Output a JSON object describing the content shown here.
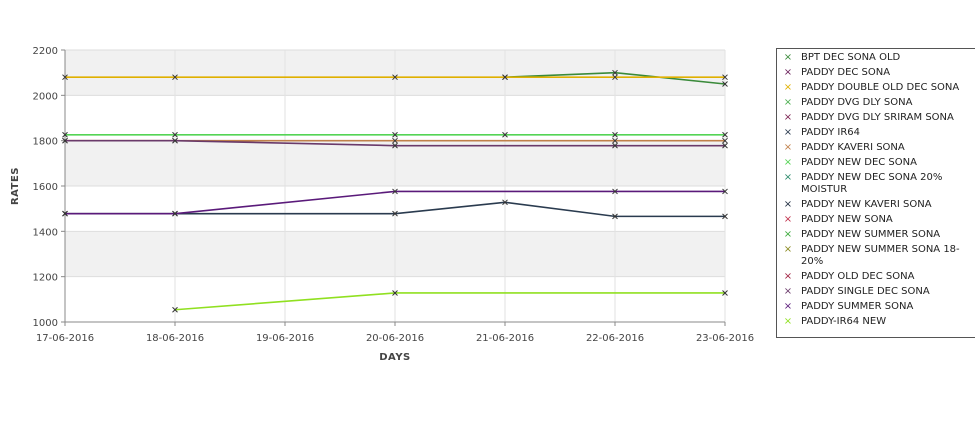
{
  "chart_data": {
    "type": "line",
    "x": [
      "17-06-2016",
      "18-06-2016",
      "19-06-2016",
      "20-06-2016",
      "21-06-2016",
      "22-06-2016",
      "23-06-2016"
    ],
    "xlabel": "DAYS",
    "ylabel": "RATES",
    "ylim": [
      1000,
      2200
    ],
    "yticks": [
      "1000",
      "1200",
      "1400",
      "1600",
      "1800",
      "2000",
      "2200"
    ],
    "grid": true,
    "legend_position": "right",
    "series": [
      {
        "name": "BPT DEC SONA OLD",
        "color": "#3a8a3a",
        "values": [
          null,
          null,
          null,
          null,
          2080,
          2100,
          2050
        ]
      },
      {
        "name": "PADDY DEC SONA",
        "color": "#6a1f5a",
        "values": [
          null,
          null,
          null,
          null,
          null,
          null,
          null
        ]
      },
      {
        "name": "PADDY DOUBLE OLD DEC SONA",
        "color": "#e0b000",
        "values": [
          2080,
          2080,
          null,
          2080,
          2080,
          2080,
          2080
        ]
      },
      {
        "name": "PADDY DVG DLY SONA",
        "color": "#4caf50",
        "values": [
          null,
          null,
          null,
          null,
          null,
          null,
          null
        ]
      },
      {
        "name": "PADDY DVG DLY SRIRAM SONA",
        "color": "#7a1f4f",
        "values": [
          null,
          null,
          null,
          null,
          null,
          null,
          null
        ]
      },
      {
        "name": "PADDY IR64",
        "color": "#2a3b4f",
        "values": [
          1478,
          1478,
          null,
          1478,
          1528,
          1466,
          1466
        ]
      },
      {
        "name": "PADDY KAVERI SONA",
        "color": "#c0804a",
        "values": [
          1800,
          1800,
          null,
          1800,
          null,
          1800,
          1800
        ]
      },
      {
        "name": "PADDY NEW DEC SONA",
        "color": "#54d454",
        "values": [
          1826,
          1826,
          null,
          1826,
          1826,
          1826,
          1826
        ]
      },
      {
        "name": "PADDY NEW DEC SONA 20% MOISTUR",
        "color": "#2a8a6a",
        "values": [
          null,
          null,
          null,
          null,
          null,
          null,
          null
        ]
      },
      {
        "name": "PADDY NEW KAVERI SONA",
        "color": "#1e2b3f",
        "values": [
          null,
          null,
          null,
          null,
          null,
          null,
          null
        ]
      },
      {
        "name": "PADDY NEW SONA",
        "color": "#c0304a",
        "values": [
          null,
          null,
          null,
          null,
          null,
          null,
          null
        ]
      },
      {
        "name": "PADDY NEW SUMMER SONA",
        "color": "#3aaa3a",
        "values": [
          null,
          null,
          null,
          null,
          null,
          null,
          null
        ]
      },
      {
        "name": "PADDY NEW SUMMER SONA 18-20%",
        "color": "#8a8a20",
        "values": [
          null,
          null,
          null,
          null,
          null,
          null,
          null
        ]
      },
      {
        "name": "PADDY OLD DEC SONA",
        "color": "#a02040",
        "values": [
          null,
          null,
          null,
          null,
          null,
          null,
          null
        ]
      },
      {
        "name": "PADDY SINGLE DEC SONA",
        "color": "#6a3a6a",
        "values": [
          1800,
          1800,
          null,
          1778,
          null,
          1778,
          1778
        ]
      },
      {
        "name": "PADDY SUMMER SONA",
        "color": "#5a1a7a",
        "values": [
          1478,
          1478,
          null,
          1576,
          null,
          1576,
          1576
        ]
      },
      {
        "name": "PADDY-IR64 NEW",
        "color": "#90e020",
        "values": [
          null,
          1054,
          null,
          1128,
          null,
          null,
          1128
        ]
      }
    ]
  }
}
